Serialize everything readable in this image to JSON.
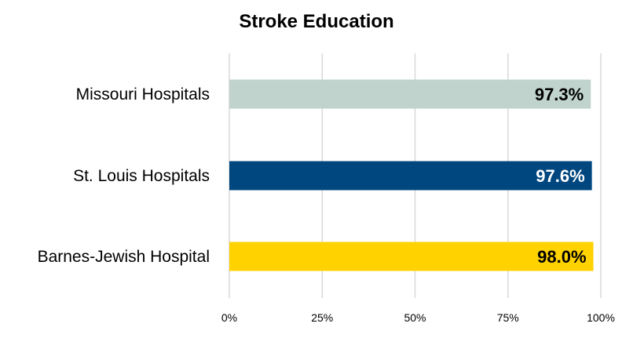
{
  "chart_data": {
    "type": "bar",
    "orientation": "horizontal",
    "title": "Stroke Education",
    "categories": [
      "Missouri Hospitals",
      "St. Louis Hospitals",
      "Barnes-Jewish Hospital"
    ],
    "values": [
      97.3,
      97.6,
      98.0
    ],
    "data_labels": [
      "97.3%",
      "97.6%",
      "98.0%"
    ],
    "bar_colors": [
      "#c0d3cd",
      "#00467f",
      "#ffd200"
    ],
    "label_colors": [
      "#000000",
      "#ffffff",
      "#000000"
    ],
    "xlim": [
      0,
      100
    ],
    "xticks": [
      0,
      25,
      50,
      75,
      100
    ],
    "xtick_labels": [
      "0%",
      "25%",
      "50%",
      "75%",
      "100%"
    ],
    "xlabel": "",
    "ylabel": "",
    "grid": "vertical",
    "legend": "none"
  }
}
